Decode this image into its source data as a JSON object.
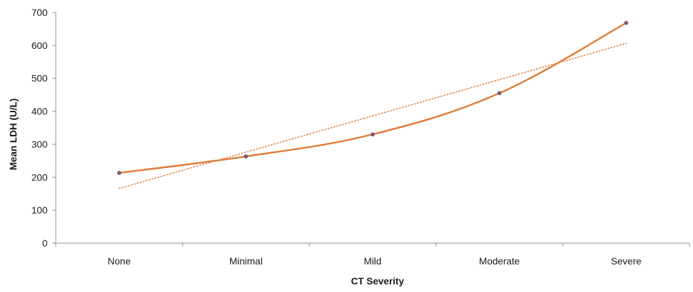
{
  "chart_data": {
    "type": "line",
    "title": "",
    "xlabel": "CT Severity",
    "ylabel": "Mean LDH (U/L)",
    "categories": [
      "None",
      "Minimal",
      "Mild",
      "Moderate",
      "Severe"
    ],
    "series": [
      {
        "values": [
          213,
          263,
          330,
          455,
          668
        ],
        "color": "#E07B39",
        "marker": "dot",
        "marker_color": "#7B5A78"
      }
    ],
    "trendline": {
      "type": "linear",
      "style": "dotted",
      "color": "#E07B39",
      "values": [
        166,
        276,
        386,
        496,
        606
      ]
    },
    "ylim": [
      0,
      700
    ],
    "yticks": [
      "0",
      "100",
      "200",
      "300",
      "400",
      "500",
      "600",
      "700"
    ],
    "grid": false,
    "legend": "none"
  }
}
